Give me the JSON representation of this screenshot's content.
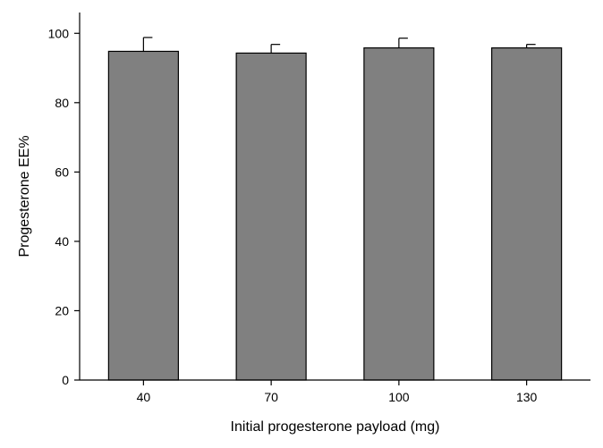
{
  "chart_data": {
    "type": "bar",
    "categories": [
      "40",
      "70",
      "100",
      "130"
    ],
    "values": [
      94.8,
      94.3,
      95.8,
      95.8
    ],
    "error": [
      4.0,
      2.5,
      2.8,
      1.0
    ],
    "xlabel": "Initial progesterone payload (mg)",
    "ylabel": "Progesterone EE%",
    "ylim": [
      0,
      106
    ],
    "yticks": [
      0,
      20,
      40,
      60,
      80,
      100
    ],
    "grid": false,
    "bar_color": "#808080",
    "edge_color": "#000000"
  }
}
